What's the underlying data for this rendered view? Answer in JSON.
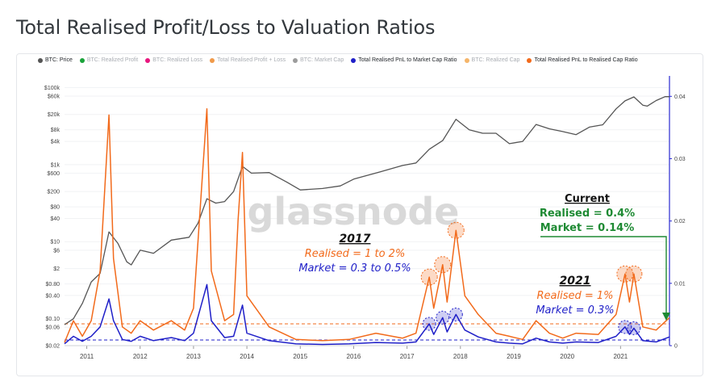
{
  "page": {
    "title": "Total Realised Profit/Loss to Valuation Ratios"
  },
  "legend": [
    {
      "label": "BTC: Price",
      "color": "#555555",
      "active": true
    },
    {
      "label": "BTC: Realized Profit",
      "color": "#1aa33a",
      "active": false
    },
    {
      "label": "BTC: Realized Loss",
      "color": "#e8177e",
      "active": false
    },
    {
      "label": "Total Realised Profit + Loss",
      "color": "#f09a4a",
      "active": false
    },
    {
      "label": "BTC: Market Cap",
      "color": "#9c9c9c",
      "active": false
    },
    {
      "label": "Total Realised PnL to Market Cap Ratio",
      "color": "#1f1fc8",
      "active": true
    },
    {
      "label": "BTC: Realized Cap",
      "color": "#f5b56a",
      "active": false
    },
    {
      "label": "Total Realised PnL to Realised Cap Ratio",
      "color": "#f26a1b",
      "active": true
    }
  ],
  "watermark": "glassnode",
  "annotations": {
    "y2017": {
      "heading": "2017",
      "realised": "Realised = 1 to 2%",
      "market": "Market = 0.3 to 0.5%"
    },
    "y2021": {
      "heading": "2021",
      "realised": "Realised = 1%",
      "market": "Market = 0.3%"
    },
    "current": {
      "heading": "Current",
      "realised": "Realised = 0.4%",
      "market": "Market = 0.14%"
    }
  },
  "colors": {
    "price": "#555555",
    "market": "#1f1fc8",
    "realised": "#f26a1b",
    "current": "#1e8a33",
    "axis_right": "#2a2ad0"
  },
  "chart_data": {
    "type": "line",
    "x_range": [
      "2010-08",
      "2021-12"
    ],
    "x_ticks": [
      "2011",
      "2012",
      "2013",
      "2014",
      "2015",
      "2016",
      "2017",
      "2018",
      "2019",
      "2020",
      "2021"
    ],
    "y_left": {
      "scale": "log",
      "range": [
        0.02,
        150000
      ],
      "tick_labels": [
        "$100k",
        "$60k",
        "$20k",
        "$8k",
        "$4k",
        "$1k",
        "$600",
        "$200",
        "$80",
        "$40",
        "$10",
        "$6",
        "$2",
        "$0.80",
        "$0.40",
        "$0.10",
        "$0.06",
        "$0.02"
      ],
      "tick_values": [
        100000,
        60000,
        20000,
        8000,
        4000,
        1000,
        600,
        200,
        80,
        40,
        10,
        6,
        2,
        0.8,
        0.4,
        0.1,
        0.06,
        0.02
      ]
    },
    "y_right": {
      "scale": "linear",
      "range": [
        0,
        0.0425
      ],
      "tick_labels": [
        "0",
        "0.01",
        "0.02",
        "0.03",
        "0.04"
      ],
      "tick_values": [
        0,
        0.01,
        0.02,
        0.03,
        0.04
      ]
    },
    "reference_lines": [
      {
        "series": "Total Realised PnL to Realised Cap Ratio",
        "value": 0.0035
      },
      {
        "series": "Total Realised PnL to Market Cap Ratio",
        "value": 0.0009
      }
    ],
    "series": [
      {
        "name": "BTC: Price",
        "axis": "left",
        "points": [
          [
            "2010-08",
            0.07
          ],
          [
            "2010-10",
            0.1
          ],
          [
            "2010-12",
            0.25
          ],
          [
            "2011-02",
            0.9
          ],
          [
            "2011-04",
            1.5
          ],
          [
            "2011-06",
            18
          ],
          [
            "2011-08",
            9
          ],
          [
            "2011-10",
            3
          ],
          [
            "2011-11",
            2.5
          ],
          [
            "2012-01",
            6
          ],
          [
            "2012-04",
            5
          ],
          [
            "2012-08",
            11
          ],
          [
            "2012-12",
            13
          ],
          [
            "2013-02",
            30
          ],
          [
            "2013-04",
            130
          ],
          [
            "2013-06",
            100
          ],
          [
            "2013-08",
            110
          ],
          [
            "2013-10",
            200
          ],
          [
            "2013-12",
            900
          ],
          [
            "2014-02",
            600
          ],
          [
            "2014-06",
            620
          ],
          [
            "2014-10",
            350
          ],
          [
            "2015-01",
            220
          ],
          [
            "2015-06",
            240
          ],
          [
            "2015-10",
            280
          ],
          [
            "2016-01",
            420
          ],
          [
            "2016-07",
            650
          ],
          [
            "2016-12",
            950
          ],
          [
            "2017-03",
            1100
          ],
          [
            "2017-06",
            2500
          ],
          [
            "2017-09",
            4200
          ],
          [
            "2017-12",
            15000
          ],
          [
            "2018-03",
            8000
          ],
          [
            "2018-06",
            6500
          ],
          [
            "2018-09",
            6500
          ],
          [
            "2018-12",
            3500
          ],
          [
            "2019-03",
            4000
          ],
          [
            "2019-06",
            11000
          ],
          [
            "2019-09",
            8500
          ],
          [
            "2019-12",
            7200
          ],
          [
            "2020-03",
            6000
          ],
          [
            "2020-06",
            9400
          ],
          [
            "2020-09",
            10800
          ],
          [
            "2020-12",
            28000
          ],
          [
            "2021-02",
            45000
          ],
          [
            "2021-04",
            57000
          ],
          [
            "2021-06",
            35000
          ],
          [
            "2021-07",
            33000
          ],
          [
            "2021-09",
            46000
          ],
          [
            "2021-11",
            58000
          ],
          [
            "2021-12",
            58000
          ]
        ]
      },
      {
        "name": "Total Realised PnL to Realised Cap Ratio",
        "axis": "right",
        "points": [
          [
            "2010-08",
            0.0005
          ],
          [
            "2010-10",
            0.004
          ],
          [
            "2010-12",
            0.0015
          ],
          [
            "2011-02",
            0.004
          ],
          [
            "2011-04",
            0.012
          ],
          [
            "2011-06",
            0.037
          ],
          [
            "2011-07",
            0.014
          ],
          [
            "2011-09",
            0.003
          ],
          [
            "2011-11",
            0.002
          ],
          [
            "2012-01",
            0.004
          ],
          [
            "2012-04",
            0.0025
          ],
          [
            "2012-08",
            0.004
          ],
          [
            "2012-11",
            0.0025
          ],
          [
            "2013-01",
            0.006
          ],
          [
            "2013-04",
            0.038
          ],
          [
            "2013-05",
            0.012
          ],
          [
            "2013-08",
            0.004
          ],
          [
            "2013-10",
            0.005
          ],
          [
            "2013-11",
            0.02
          ],
          [
            "2013-12",
            0.031
          ],
          [
            "2014-01",
            0.008
          ],
          [
            "2014-06",
            0.003
          ],
          [
            "2014-12",
            0.001
          ],
          [
            "2015-06",
            0.0008
          ],
          [
            "2015-12",
            0.001
          ],
          [
            "2016-06",
            0.002
          ],
          [
            "2016-12",
            0.0012
          ],
          [
            "2017-03",
            0.002
          ],
          [
            "2017-06",
            0.011
          ],
          [
            "2017-07",
            0.006
          ],
          [
            "2017-09",
            0.013
          ],
          [
            "2017-10",
            0.007
          ],
          [
            "2017-12",
            0.0185
          ],
          [
            "2018-02",
            0.008
          ],
          [
            "2018-05",
            0.005
          ],
          [
            "2018-09",
            0.002
          ],
          [
            "2018-12",
            0.0015
          ],
          [
            "2019-03",
            0.001
          ],
          [
            "2019-06",
            0.004
          ],
          [
            "2019-09",
            0.002
          ],
          [
            "2019-12",
            0.0012
          ],
          [
            "2020-03",
            0.002
          ],
          [
            "2020-08",
            0.0018
          ],
          [
            "2020-12",
            0.005
          ],
          [
            "2021-02",
            0.0115
          ],
          [
            "2021-03",
            0.007
          ],
          [
            "2021-04",
            0.0115
          ],
          [
            "2021-06",
            0.003
          ],
          [
            "2021-09",
            0.0025
          ],
          [
            "2021-12",
            0.0045
          ]
        ]
      },
      {
        "name": "Total Realised PnL to Market Cap Ratio",
        "axis": "right",
        "points": [
          [
            "2010-08",
            0.0003
          ],
          [
            "2010-10",
            0.0015
          ],
          [
            "2010-12",
            0.0007
          ],
          [
            "2011-02",
            0.0015
          ],
          [
            "2011-04",
            0.003
          ],
          [
            "2011-06",
            0.0075
          ],
          [
            "2011-07",
            0.004
          ],
          [
            "2011-09",
            0.001
          ],
          [
            "2011-11",
            0.0007
          ],
          [
            "2012-01",
            0.0015
          ],
          [
            "2012-04",
            0.0008
          ],
          [
            "2012-08",
            0.0013
          ],
          [
            "2012-11",
            0.0008
          ],
          [
            "2013-01",
            0.002
          ],
          [
            "2013-04",
            0.0098
          ],
          [
            "2013-05",
            0.004
          ],
          [
            "2013-08",
            0.0013
          ],
          [
            "2013-10",
            0.0015
          ],
          [
            "2013-11",
            0.004
          ],
          [
            "2013-12",
            0.0065
          ],
          [
            "2014-01",
            0.002
          ],
          [
            "2014-06",
            0.0008
          ],
          [
            "2014-12",
            0.0003
          ],
          [
            "2015-06",
            0.0002
          ],
          [
            "2015-12",
            0.0003
          ],
          [
            "2016-06",
            0.0005
          ],
          [
            "2016-12",
            0.0004
          ],
          [
            "2017-03",
            0.0006
          ],
          [
            "2017-06",
            0.0035
          ],
          [
            "2017-07",
            0.0018
          ],
          [
            "2017-09",
            0.0045
          ],
          [
            "2017-10",
            0.0022
          ],
          [
            "2017-12",
            0.005
          ],
          [
            "2018-02",
            0.0025
          ],
          [
            "2018-05",
            0.0014
          ],
          [
            "2018-09",
            0.0006
          ],
          [
            "2018-12",
            0.0004
          ],
          [
            "2019-03",
            0.0003
          ],
          [
            "2019-06",
            0.0012
          ],
          [
            "2019-09",
            0.0006
          ],
          [
            "2019-12",
            0.0004
          ],
          [
            "2020-03",
            0.0006
          ],
          [
            "2020-08",
            0.0005
          ],
          [
            "2020-12",
            0.0015
          ],
          [
            "2021-02",
            0.003
          ],
          [
            "2021-03",
            0.0018
          ],
          [
            "2021-04",
            0.0028
          ],
          [
            "2021-06",
            0.0008
          ],
          [
            "2021-09",
            0.0006
          ],
          [
            "2021-12",
            0.0014
          ]
        ]
      }
    ]
  }
}
